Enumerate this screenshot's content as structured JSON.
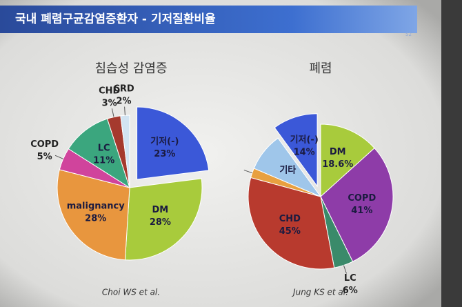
{
  "title": "국내 폐렴구균감염증환자 - 기저질환비율",
  "page_number": "52",
  "chart_data": [
    {
      "type": "pie",
      "title": "침습성 감염증",
      "source": "Choi WS et al.",
      "categories": [
        "기저(-)",
        "DM",
        "malignancy",
        "COPD",
        "LC",
        "CHD",
        "CRD"
      ],
      "values": [
        23,
        28,
        28,
        5,
        11,
        3,
        2
      ],
      "value_labels": [
        "23%",
        "28%",
        "28%",
        "5%",
        "11%",
        "3%",
        "2%"
      ],
      "colors": [
        "#3b58d8",
        "#a8cb3c",
        "#e8963e",
        "#d0449c",
        "#3ba67e",
        "#a53a2e",
        "#d2e4f2"
      ],
      "explode": 0
    },
    {
      "type": "pie",
      "title": "폐렴",
      "source": "Jung KS et al.",
      "categories": [
        "DM",
        "COPD",
        "LC",
        "CHD",
        null,
        "기타",
        "기저(-)"
      ],
      "values": [
        18.6,
        41,
        6,
        45,
        3,
        12,
        14
      ],
      "value_labels": [
        "18.6%",
        "41%",
        "6%",
        "45%",
        null,
        null,
        "14%"
      ],
      "colors": [
        "#a8cb3c",
        "#8e3ca8",
        "#3a8a6a",
        "#b83a2e",
        "#e8a040",
        "#9fc6ea",
        "#3b58d8"
      ],
      "explode": 6
    }
  ]
}
